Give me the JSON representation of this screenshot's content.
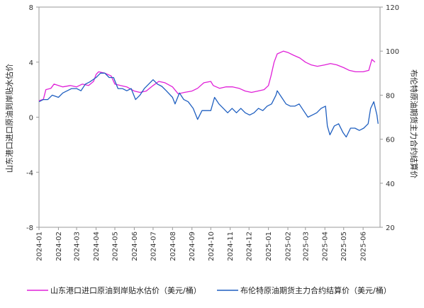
{
  "chart_data": {
    "type": "line",
    "y_left": {
      "label": "山东港口进口原油到岸贴水估价",
      "ticks": [
        8,
        4,
        0,
        -4,
        -8
      ],
      "range": [
        -8,
        8
      ]
    },
    "y_right": {
      "label": "布伦特原油期货主力合约结算价",
      "ticks": [
        120,
        100,
        80,
        60,
        40,
        20
      ],
      "range": [
        20,
        120
      ]
    },
    "x_ticks": [
      "2024-01",
      "2024-02",
      "2024-03",
      "2024-04",
      "2024-05",
      "2024-06",
      "2024-07",
      "2024-08",
      "2024-09",
      "2024-10",
      "2024-11",
      "2024-12",
      "2025-01",
      "2025-02",
      "2025-03",
      "2025-04",
      "2025-05",
      "2025-06"
    ],
    "grid": false,
    "legend_position": "bottom",
    "series": [
      {
        "name": "山东港口进口原油到岸贴水估价（美元/桶）",
        "axis": "left",
        "color": "#e020d8",
        "points": [
          [
            "2024-01-01",
            1.2
          ],
          [
            "2024-01-08",
            1.3
          ],
          [
            "2024-01-12",
            2.0
          ],
          [
            "2024-01-20",
            2.1
          ],
          [
            "2024-01-25",
            2.4
          ],
          [
            "2024-02-01",
            2.3
          ],
          [
            "2024-02-08",
            2.2
          ],
          [
            "2024-02-20",
            2.3
          ],
          [
            "2024-03-01",
            2.2
          ],
          [
            "2024-03-10",
            2.4
          ],
          [
            "2024-03-20",
            2.3
          ],
          [
            "2024-03-28",
            2.6
          ],
          [
            "2024-04-01",
            3.1
          ],
          [
            "2024-04-05",
            3.3
          ],
          [
            "2024-04-15",
            3.2
          ],
          [
            "2024-04-25",
            3.0
          ],
          [
            "2024-05-01",
            2.4
          ],
          [
            "2024-05-10",
            2.3
          ],
          [
            "2024-05-20",
            2.2
          ],
          [
            "2024-06-01",
            1.9
          ],
          [
            "2024-06-10",
            1.8
          ],
          [
            "2024-06-20",
            1.9
          ],
          [
            "2024-07-01",
            2.3
          ],
          [
            "2024-07-10",
            2.6
          ],
          [
            "2024-07-20",
            2.5
          ],
          [
            "2024-08-01",
            2.2
          ],
          [
            "2024-08-10",
            1.7
          ],
          [
            "2024-08-20",
            1.8
          ],
          [
            "2024-09-01",
            1.9
          ],
          [
            "2024-09-10",
            2.1
          ],
          [
            "2024-09-20",
            2.5
          ],
          [
            "2024-10-01",
            2.6
          ],
          [
            "2024-10-05",
            2.3
          ],
          [
            "2024-10-15",
            2.1
          ],
          [
            "2024-10-25",
            2.2
          ],
          [
            "2024-11-05",
            2.2
          ],
          [
            "2024-11-15",
            2.1
          ],
          [
            "2024-11-25",
            1.9
          ],
          [
            "2024-12-05",
            1.8
          ],
          [
            "2024-12-15",
            1.9
          ],
          [
            "2024-12-25",
            2.0
          ],
          [
            "2025-01-01",
            2.3
          ],
          [
            "2025-01-05",
            3.0
          ],
          [
            "2025-01-10",
            4.0
          ],
          [
            "2025-01-15",
            4.6
          ],
          [
            "2025-01-25",
            4.8
          ],
          [
            "2025-02-01",
            4.7
          ],
          [
            "2025-02-10",
            4.5
          ],
          [
            "2025-02-20",
            4.3
          ],
          [
            "2025-03-01",
            4.0
          ],
          [
            "2025-03-10",
            3.8
          ],
          [
            "2025-03-20",
            3.7
          ],
          [
            "2025-04-01",
            3.8
          ],
          [
            "2025-04-10",
            3.9
          ],
          [
            "2025-04-20",
            3.8
          ],
          [
            "2025-05-01",
            3.6
          ],
          [
            "2025-05-10",
            3.4
          ],
          [
            "2025-05-20",
            3.3
          ],
          [
            "2025-06-01",
            3.3
          ],
          [
            "2025-06-10",
            3.4
          ],
          [
            "2025-06-15",
            4.2
          ],
          [
            "2025-06-20",
            4.0
          ]
        ]
      },
      {
        "name": "布伦特原油期货主力合约结算价（美元/桶）",
        "axis": "right",
        "color": "#1f5fc0",
        "points": [
          [
            "2024-01-01",
            77
          ],
          [
            "2024-01-08",
            78
          ],
          [
            "2024-01-15",
            78
          ],
          [
            "2024-01-22",
            80
          ],
          [
            "2024-02-01",
            79
          ],
          [
            "2024-02-08",
            81
          ],
          [
            "2024-02-15",
            82
          ],
          [
            "2024-02-22",
            83
          ],
          [
            "2024-03-01",
            83
          ],
          [
            "2024-03-08",
            82
          ],
          [
            "2024-03-15",
            85
          ],
          [
            "2024-03-22",
            86
          ],
          [
            "2024-04-01",
            88
          ],
          [
            "2024-04-08",
            90
          ],
          [
            "2024-04-15",
            90
          ],
          [
            "2024-04-22",
            88
          ],
          [
            "2024-04-29",
            88
          ],
          [
            "2024-05-06",
            83
          ],
          [
            "2024-05-13",
            83
          ],
          [
            "2024-05-20",
            82
          ],
          [
            "2024-05-27",
            83
          ],
          [
            "2024-06-03",
            78
          ],
          [
            "2024-06-10",
            80
          ],
          [
            "2024-06-17",
            83
          ],
          [
            "2024-06-24",
            85
          ],
          [
            "2024-07-01",
            87
          ],
          [
            "2024-07-08",
            85
          ],
          [
            "2024-07-15",
            84
          ],
          [
            "2024-07-22",
            82
          ],
          [
            "2024-08-01",
            79
          ],
          [
            "2024-08-05",
            76
          ],
          [
            "2024-08-12",
            81
          ],
          [
            "2024-08-19",
            78
          ],
          [
            "2024-08-26",
            77
          ],
          [
            "2024-09-03",
            74
          ],
          [
            "2024-09-10",
            69
          ],
          [
            "2024-09-17",
            73
          ],
          [
            "2024-09-24",
            73
          ],
          [
            "2024-10-01",
            73
          ],
          [
            "2024-10-07",
            79
          ],
          [
            "2024-10-14",
            76
          ],
          [
            "2024-10-21",
            74
          ],
          [
            "2024-10-28",
            72
          ],
          [
            "2024-11-04",
            74
          ],
          [
            "2024-11-11",
            72
          ],
          [
            "2024-11-18",
            74
          ],
          [
            "2024-11-25",
            72
          ],
          [
            "2024-12-02",
            71
          ],
          [
            "2024-12-09",
            72
          ],
          [
            "2024-12-16",
            74
          ],
          [
            "2024-12-23",
            73
          ],
          [
            "2024-12-30",
            75
          ],
          [
            "2025-01-06",
            76
          ],
          [
            "2025-01-13",
            80
          ],
          [
            "2025-01-15",
            82
          ],
          [
            "2025-01-22",
            79
          ],
          [
            "2025-01-29",
            76
          ],
          [
            "2025-02-05",
            75
          ],
          [
            "2025-02-12",
            75
          ],
          [
            "2025-02-19",
            76
          ],
          [
            "2025-02-26",
            73
          ],
          [
            "2025-03-05",
            70
          ],
          [
            "2025-03-12",
            71
          ],
          [
            "2025-03-19",
            72
          ],
          [
            "2025-03-26",
            74
          ],
          [
            "2025-04-02",
            75
          ],
          [
            "2025-04-05",
            66
          ],
          [
            "2025-04-09",
            62
          ],
          [
            "2025-04-16",
            66
          ],
          [
            "2025-04-23",
            67
          ],
          [
            "2025-04-30",
            63
          ],
          [
            "2025-05-05",
            61
          ],
          [
            "2025-05-12",
            65
          ],
          [
            "2025-05-19",
            65
          ],
          [
            "2025-05-26",
            64
          ],
          [
            "2025-06-02",
            65
          ],
          [
            "2025-06-09",
            67
          ],
          [
            "2025-06-13",
            74
          ],
          [
            "2025-06-18",
            77
          ],
          [
            "2025-06-23",
            71
          ],
          [
            "2025-06-25",
            67
          ]
        ]
      }
    ]
  }
}
